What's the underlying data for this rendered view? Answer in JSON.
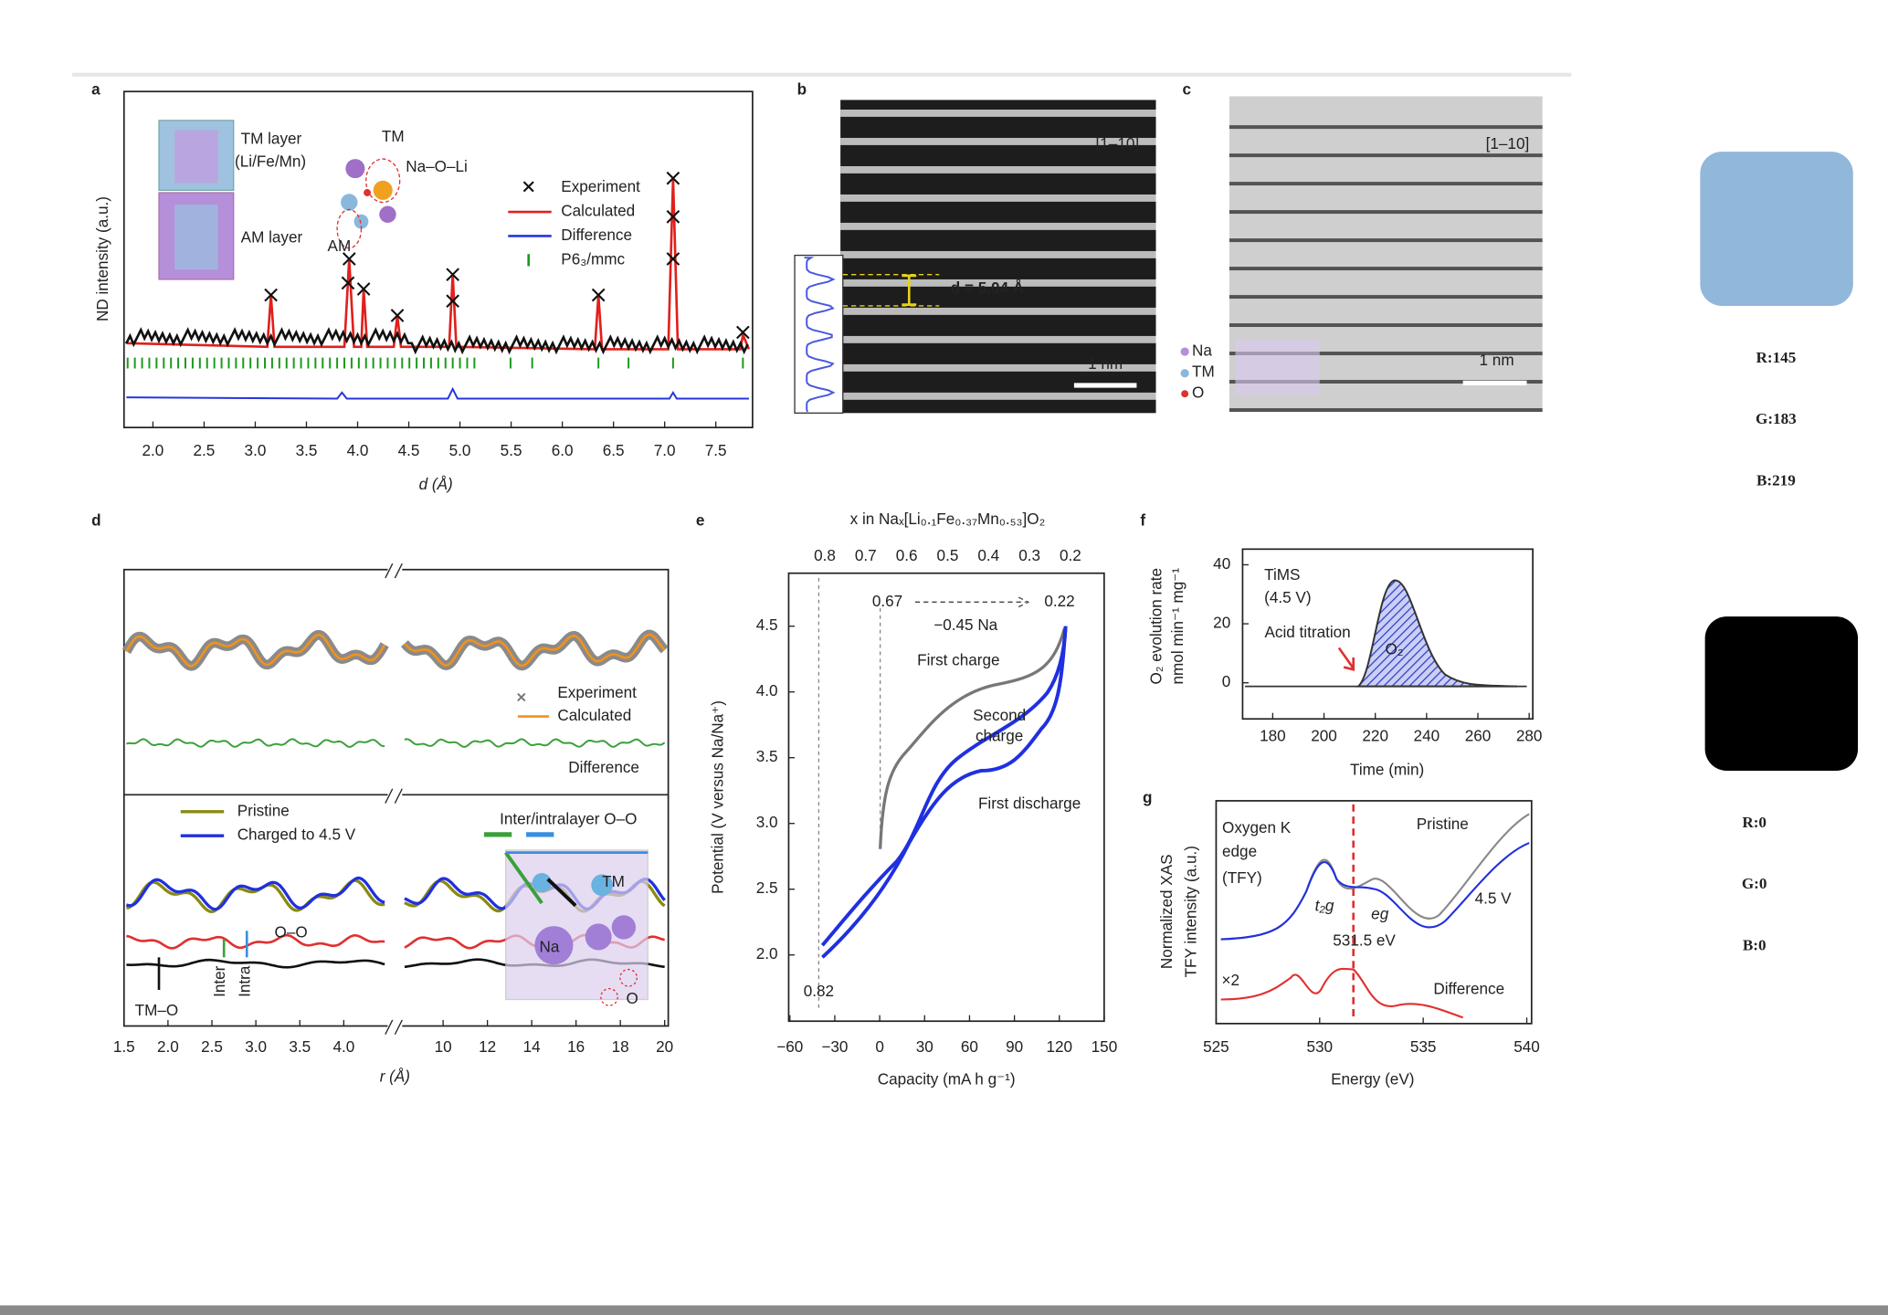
{
  "panel_a": {
    "label": "a",
    "y_axis_label": "ND intensity (a.u.)",
    "x_axis_label": "d (Å)",
    "x_tick_labels": [
      "2.0",
      "2.5",
      "3.0",
      "3.5",
      "4.0",
      "4.5",
      "5.0",
      "5.5",
      "6.0",
      "6.5",
      "7.0",
      "7.5"
    ],
    "legend": [
      "Experiment",
      "Calculated",
      "Difference",
      "P6₃/mmc"
    ],
    "annotations": {
      "tm_layer": "TM layer",
      "tm_layer_composition": "(Li/Fe/Mn)",
      "am_layer": "AM layer",
      "tm": "TM",
      "na_o_li": "Na–O–Li",
      "am": "AM"
    }
  },
  "panel_b": {
    "label": "b",
    "zone_axis": "[1–10]",
    "d_spacing": "d = 5.04 Å",
    "scale_bar": "1 nm"
  },
  "panel_c": {
    "label": "c",
    "zone_axis": "[1–10]",
    "scale_bar": "1 nm",
    "legend": [
      "Na",
      "TM",
      "O"
    ]
  },
  "panel_d": {
    "label": "d",
    "x_axis_label": "r (Å)",
    "x_tick_labels_left": [
      "1.5",
      "2.0",
      "2.5",
      "3.0",
      "3.5",
      "4.0"
    ],
    "x_tick_labels_right": [
      "10",
      "12",
      "14",
      "16",
      "18",
      "20"
    ],
    "legend_top": [
      "Experiment",
      "Calculated"
    ],
    "difference": "Difference",
    "legend_bottom": [
      "Pristine",
      "Charged to 4.5 V"
    ],
    "annotations": {
      "oo_pairs": "Inter/intralayer O–O",
      "oo": "O–O",
      "tmo": "TM–O",
      "inter": "Inter",
      "intra": "Intra",
      "tm": "TM",
      "na": "Na",
      "o": "O"
    }
  },
  "panel_e": {
    "label": "e",
    "top_axis_label": "x in Naₓ[Li₀.₁Fe₀.₃₇Mn₀.₅₃]O₂",
    "top_tick_labels": [
      "0.8",
      "0.7",
      "0.6",
      "0.5",
      "0.4",
      "0.3",
      "0.2"
    ],
    "y_axis_label": "Potential (V versus Na/Na⁺)",
    "y_tick_labels": [
      "2.0",
      "2.5",
      "3.0",
      "3.5",
      "4.0",
      "4.5"
    ],
    "x_axis_label": "Capacity (mA h g⁻¹)",
    "x_tick_labels": [
      "−60",
      "−30",
      "0",
      "30",
      "60",
      "90",
      "120",
      "150"
    ],
    "annotations": {
      "start": "0.67",
      "end": "0.22",
      "delta": "−0.45 Na",
      "first_charge": "First charge",
      "second_charge_1": "Second",
      "second_charge_2": "charge",
      "first_discharge": "First discharge",
      "discharged": "0.82"
    }
  },
  "panel_f": {
    "label": "f",
    "y_axis_label": [
      "O₂ evolution rate",
      "nmol min⁻¹ mg⁻¹"
    ],
    "y_tick_labels": [
      "0",
      "20",
      "40"
    ],
    "x_axis_label": "Time (min)",
    "x_tick_labels": [
      "180",
      "200",
      "220",
      "240",
      "260",
      "280"
    ],
    "annotations": {
      "method": "TiMS",
      "voltage": "(4.5 V)",
      "acid": "Acid titration",
      "gas": "O₂"
    }
  },
  "panel_g": {
    "label": "g",
    "y_axis_label": [
      "Normalized XAS",
      "TFY intensity (a.u.)"
    ],
    "x_axis_label": "Energy (eV)",
    "x_tick_labels": [
      "525",
      "530",
      "535",
      "540"
    ],
    "annotations": {
      "edge_1": "Oxygen K",
      "edge_2": "edge",
      "edge_3": "(TFY)",
      "pristine": "Pristine",
      "charged": "4.5 V",
      "energy": "531.5 eV",
      "factor": "×2",
      "difference": "Difference",
      "t2g": "t₂g",
      "eg": "eg"
    }
  },
  "swatches": [
    {
      "color": "#91b7db",
      "r": "R:145",
      "g": "G:183",
      "b": "B:219"
    },
    {
      "color": "#000000",
      "r": "R:0",
      "g": "G:0",
      "b": "B:0"
    }
  ]
}
